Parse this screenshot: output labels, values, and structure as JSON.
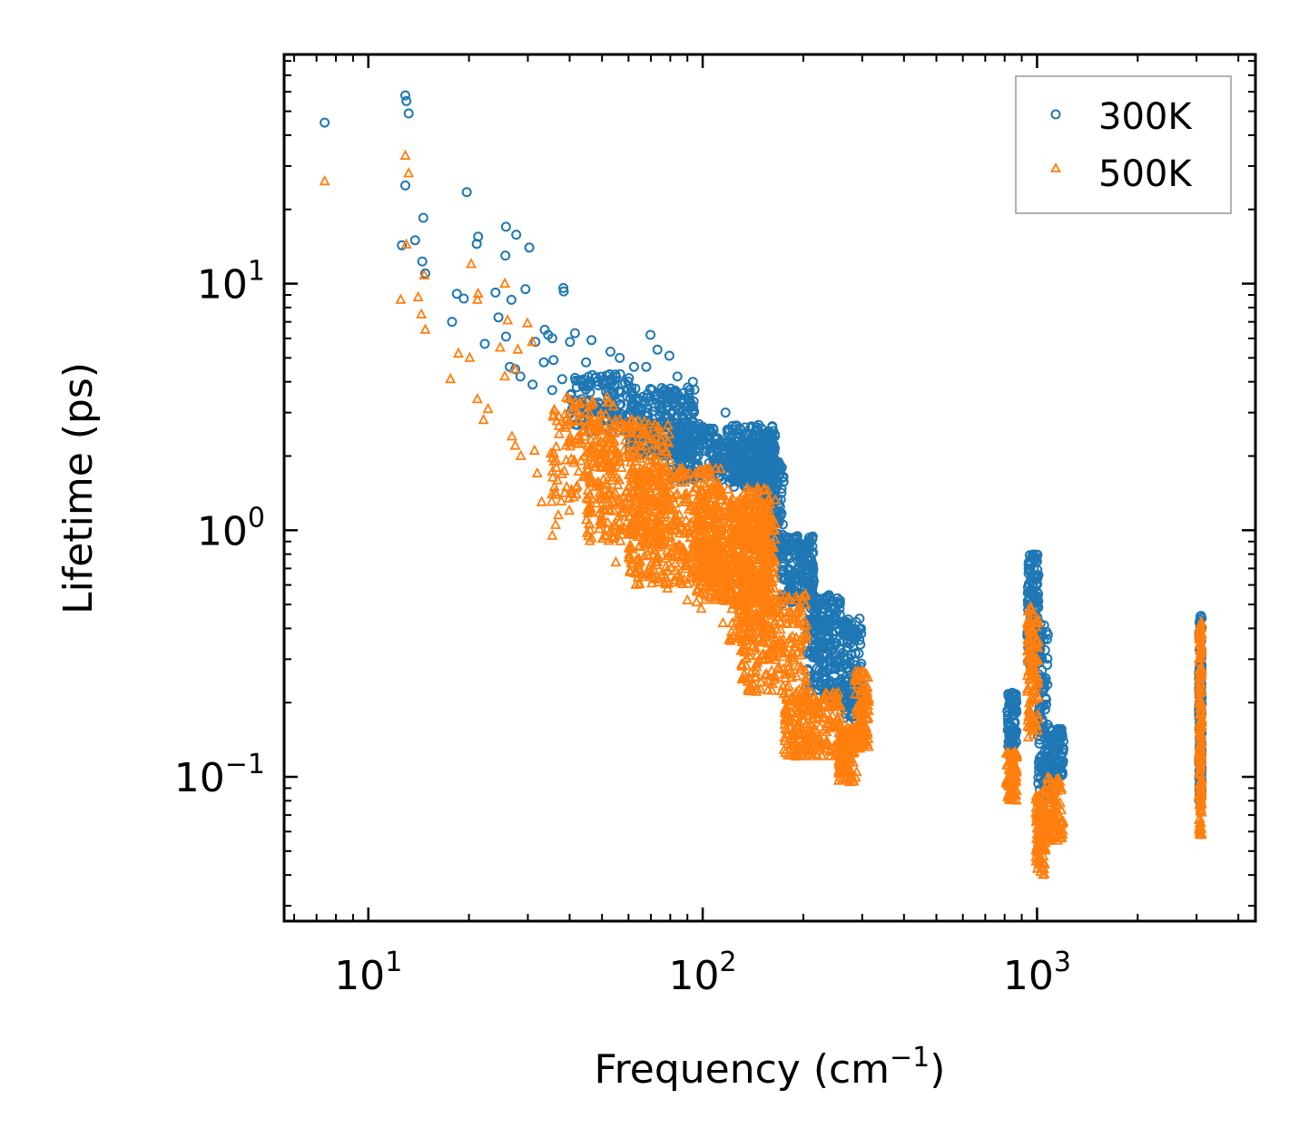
{
  "chart_data": {
    "type": "scatter",
    "title": "",
    "xlabel": "Frequency (cm",
    "xlabel_sup": "−1",
    "xlabel_suffix": ")",
    "ylabel": "Lifetime (ps)",
    "xscale": "log",
    "yscale": "log",
    "xlim": [
      5.6,
      4500
    ],
    "ylim": [
      0.026,
      85
    ],
    "x_ticks": [
      {
        "value": 10,
        "base": "10",
        "exp": "1"
      },
      {
        "value": 100,
        "base": "10",
        "exp": "2"
      },
      {
        "value": 1000,
        "base": "10",
        "exp": "3"
      }
    ],
    "y_ticks": [
      {
        "value": 0.1,
        "base": "10",
        "exp": "−1"
      },
      {
        "value": 1,
        "base": "10",
        "exp": "0"
      },
      {
        "value": 10,
        "base": "10",
        "exp": "1"
      }
    ],
    "legend_position": "top-right",
    "series": [
      {
        "name": "300K",
        "marker": "circle",
        "color": "#1f77b4",
        "points": [
          [
            7.4,
            45
          ],
          [
            12.9,
            58
          ],
          [
            13.0,
            55
          ],
          [
            13.2,
            49
          ],
          [
            12.9,
            25
          ],
          [
            12.6,
            14.3
          ],
          [
            13.8,
            15
          ],
          [
            14.6,
            18.5
          ],
          [
            14.5,
            12.3
          ],
          [
            14.8,
            11
          ],
          [
            19.7,
            23.5
          ],
          [
            18.4,
            9.1
          ],
          [
            17.8,
            7
          ],
          [
            19.3,
            8.7
          ],
          [
            21.3,
            15.5
          ],
          [
            21.1,
            14.5
          ],
          [
            22.3,
            5.7
          ],
          [
            25.8,
            17
          ],
          [
            25.7,
            13
          ],
          [
            27.7,
            15.8
          ],
          [
            24.0,
            9.2
          ],
          [
            29.5,
            9.5
          ],
          [
            30.3,
            14
          ],
          [
            24.5,
            7.3
          ],
          [
            26.8,
            8.6
          ],
          [
            25.8,
            6.1
          ],
          [
            31.6,
            5.8
          ],
          [
            33.7,
            6.5
          ],
          [
            34.5,
            6.2
          ],
          [
            38.3,
            9.6
          ],
          [
            38.4,
            9.3
          ],
          [
            35.5,
            6.0
          ],
          [
            41.5,
            6.3
          ],
          [
            40.1,
            5.8
          ],
          [
            46.5,
            5.9
          ],
          [
            53.0,
            5.3
          ],
          [
            56.5,
            5.0
          ],
          [
            44.8,
            4.8
          ],
          [
            62.3,
            4.6
          ],
          [
            69.8,
            6.2
          ],
          [
            73.2,
            5.4
          ],
          [
            79.5,
            5.1
          ],
          [
            67.8,
            4.6
          ],
          [
            84.0,
            4.2
          ],
          [
            93.5,
            4.0
          ],
          [
            87.5,
            3.6
          ],
          [
            117,
            3.0
          ],
          [
            28.5,
            4.2
          ],
          [
            31.0,
            3.9
          ],
          [
            35.5,
            3.7
          ],
          [
            38.0,
            4.1
          ],
          [
            42.0,
            3.8
          ],
          [
            26.5,
            4.6
          ],
          [
            27.5,
            4.5
          ],
          [
            35.8,
            4.9
          ],
          [
            33.5,
            4.8
          ]
        ],
        "clouds": [
          {
            "x": [
              40,
              62
            ],
            "y": [
              2.5,
              4.3
            ],
            "n": 130,
            "tilt": -0.3
          },
          {
            "x": [
              60,
              95
            ],
            "y": [
              2.0,
              3.8
            ],
            "n": 260,
            "tilt": -0.2
          },
          {
            "x": [
              80,
              165
            ],
            "y": [
              1.6,
              2.7
            ],
            "n": 380,
            "tilt": -0.1
          },
          {
            "x": [
              120,
              165
            ],
            "y": [
              1.5,
              2.3
            ],
            "n": 200,
            "tilt": 0
          },
          {
            "x": [
              150,
              175
            ],
            "y": [
              0.8,
              1.9
            ],
            "n": 140,
            "tilt": -1.0
          },
          {
            "x": [
              170,
              215
            ],
            "y": [
              0.5,
              0.95
            ],
            "n": 180,
            "tilt": -1.2
          },
          {
            "x": [
              205,
              260
            ],
            "y": [
              0.21,
              0.55
            ],
            "n": 220,
            "tilt": -1.4
          },
          {
            "x": [
              262,
              300
            ],
            "y": [
              0.17,
              0.44
            ],
            "n": 120,
            "tilt": 1.6
          },
          {
            "x": [
              815,
              870
            ],
            "y": [
              0.13,
              0.22
            ],
            "n": 80,
            "tilt": -1.0
          },
          {
            "x": [
              935,
              1010
            ],
            "y": [
              0.28,
              0.8
            ],
            "n": 130,
            "tilt": 0
          },
          {
            "x": [
              1005,
              1080
            ],
            "y": [
              0.08,
              0.42
            ],
            "n": 110,
            "tilt": -1.5
          },
          {
            "x": [
              1080,
              1200
            ],
            "y": [
              0.1,
              0.16
            ],
            "n": 90,
            "tilt": 0.5
          },
          {
            "x": [
              3050,
              3110
            ],
            "y": [
              0.08,
              0.45
            ],
            "n": 170,
            "tilt": 0
          }
        ]
      },
      {
        "name": "500K",
        "marker": "triangle",
        "color": "#ff7f0e",
        "points": [
          [
            7.4,
            26
          ],
          [
            12.9,
            33
          ],
          [
            13.2,
            28
          ],
          [
            13.0,
            14.4
          ],
          [
            12.5,
            8.6
          ],
          [
            14.1,
            8.8
          ],
          [
            14.7,
            10.8
          ],
          [
            14.8,
            6.5
          ],
          [
            14.4,
            7.5
          ],
          [
            20.3,
            12
          ],
          [
            18.6,
            5.2
          ],
          [
            17.6,
            4.1
          ],
          [
            20.1,
            5.0
          ],
          [
            21.3,
            9.1
          ],
          [
            21.2,
            8.6
          ],
          [
            22.8,
            3.1
          ],
          [
            25.6,
            10
          ],
          [
            26.1,
            7.1
          ],
          [
            24.8,
            5.5
          ],
          [
            28.0,
            5.4
          ],
          [
            29.9,
            6.9
          ],
          [
            30.9,
            5.8
          ],
          [
            25.6,
            4.2
          ],
          [
            27.4,
            4.5
          ],
          [
            26.9,
            2.4
          ],
          [
            22.1,
            2.8
          ],
          [
            21.2,
            3.4
          ],
          [
            27.5,
            2.2
          ],
          [
            28.6,
            2.0
          ],
          [
            31.4,
            2.1
          ],
          [
            32.0,
            1.7
          ],
          [
            36.0,
            1.9
          ],
          [
            33.0,
            1.3
          ],
          [
            36.3,
            1.05
          ],
          [
            37.0,
            1.15
          ],
          [
            35.5,
            0.95
          ],
          [
            39.9,
            1.2
          ],
          [
            44.9,
            1.1
          ],
          [
            46.0,
            1.0
          ],
          [
            55.0,
            0.74
          ],
          [
            64.0,
            0.72
          ],
          [
            70.5,
            0.68
          ],
          [
            78.5,
            0.58
          ],
          [
            90.0,
            0.52
          ],
          [
            99.0,
            0.48
          ],
          [
            115,
            0.42
          ],
          [
            120,
            0.36
          ],
          [
            131,
            0.28
          ]
        ],
        "clouds": [
          {
            "x": [
              35,
              55
            ],
            "y": [
              1.3,
              3.5
            ],
            "n": 150,
            "tilt": -0.5
          },
          {
            "x": [
              45,
              80
            ],
            "y": [
              0.9,
              2.8
            ],
            "n": 320,
            "tilt": -0.5
          },
          {
            "x": [
              60,
              115
            ],
            "y": [
              0.6,
              1.8
            ],
            "n": 480,
            "tilt": -0.6
          },
          {
            "x": [
              95,
              160
            ],
            "y": [
              0.5,
              1.5
            ],
            "n": 480,
            "tilt": -0.3
          },
          {
            "x": [
              120,
              165
            ],
            "y": [
              0.35,
              1.35
            ],
            "n": 300,
            "tilt": -0.6
          },
          {
            "x": [
              130,
              205
            ],
            "y": [
              0.22,
              0.55
            ],
            "n": 260,
            "tilt": -1.0
          },
          {
            "x": [
              175,
              260
            ],
            "y": [
              0.12,
              0.22
            ],
            "n": 260,
            "tilt": -0.9
          },
          {
            "x": [
              255,
              290
            ],
            "y": [
              0.095,
              0.16
            ],
            "n": 120,
            "tilt": 0
          },
          {
            "x": [
              285,
              315
            ],
            "y": [
              0.13,
              0.27
            ],
            "n": 110,
            "tilt": 1.2
          },
          {
            "x": [
              810,
              870
            ],
            "y": [
              0.08,
              0.13
            ],
            "n": 90,
            "tilt": -0.8
          },
          {
            "x": [
              935,
              1010
            ],
            "y": [
              0.14,
              0.5
            ],
            "n": 130,
            "tilt": 0
          },
          {
            "x": [
              990,
              1060
            ],
            "y": [
              0.04,
              0.085
            ],
            "n": 100,
            "tilt": 0.4
          },
          {
            "x": [
              1040,
              1200
            ],
            "y": [
              0.055,
              0.1
            ],
            "n": 100,
            "tilt": 0.5
          },
          {
            "x": [
              3050,
              3110
            ],
            "y": [
              0.058,
              0.43
            ],
            "n": 170,
            "tilt": 0
          }
        ]
      }
    ]
  }
}
